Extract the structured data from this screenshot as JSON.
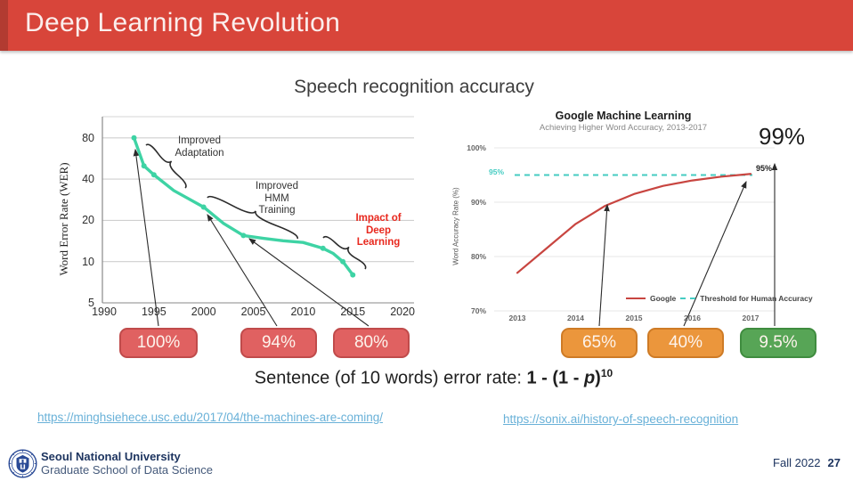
{
  "header": {
    "title": "Deep Learning Revolution",
    "bg": "#d8453a",
    "accent": "#b23b31"
  },
  "subtitle": "Speech recognition accuracy",
  "badges": [
    {
      "label": "100%",
      "fill": "#e06161",
      "border": "#c04b4b"
    },
    {
      "label": "94%",
      "fill": "#e06161",
      "border": "#c04b4b"
    },
    {
      "label": "80%",
      "fill": "#e06161",
      "border": "#c04b4b"
    },
    {
      "label": "65%",
      "fill": "#eb963c",
      "border": "#ce7b26"
    },
    {
      "label": "40%",
      "fill": "#eb963c",
      "border": "#ce7b26"
    },
    {
      "label": "9.5%",
      "fill": "#57a556",
      "border": "#3f8c3f"
    }
  ],
  "formula": {
    "prefix": "Sentence (of 10 words) error rate: ",
    "bold_open": "1 - (1 - ",
    "var": "p",
    "bold_close": ")",
    "exponent": "10"
  },
  "links": [
    {
      "text": "https://minghsiehece.usc.edu/2017/04/the-machines-are-coming/"
    },
    {
      "text": "https://sonix.ai/history-of-speech-recognition"
    }
  ],
  "footer": {
    "university": "Seoul National University",
    "school": "Graduate School of Data Science",
    "term": "Fall 2022",
    "page": "27"
  },
  "chart_data": [
    {
      "type": "line",
      "title": "",
      "ylabel": "Word Error Rate (WER)",
      "yscale": "log",
      "yticks": [
        80,
        40,
        20,
        10,
        5
      ],
      "xticks": [
        1990,
        1995,
        2000,
        2005,
        2010,
        2015,
        2020
      ],
      "xlim": [
        1990,
        2020
      ],
      "line_color": "#3ed3a4",
      "series": [
        {
          "name": "Word Error Rate",
          "points": [
            [
              1993,
              80
            ],
            [
              1994,
              50
            ],
            [
              1995,
              43
            ],
            [
              1997,
              33
            ],
            [
              2000,
              25
            ],
            [
              2002,
              19
            ],
            [
              2004,
              15.5
            ],
            [
              2006,
              14.8
            ],
            [
              2008,
              14.2
            ],
            [
              2010,
              13.8
            ],
            [
              2012,
              12.5
            ],
            [
              2013,
              11.5
            ],
            [
              2014,
              10
            ],
            [
              2015,
              8
            ]
          ],
          "markers": [
            [
              1993,
              80
            ],
            [
              1994,
              50
            ],
            [
              1995,
              43
            ],
            [
              2000,
              25
            ],
            [
              2004,
              15.5
            ],
            [
              2012,
              12.5
            ],
            [
              2014,
              10
            ],
            [
              2015,
              8
            ]
          ]
        }
      ],
      "annotations": [
        {
          "text": "Improved\nAdaptation",
          "color": "#333333"
        },
        {
          "text": "Improved\nHMM\nTraining",
          "color": "#333333"
        },
        {
          "text": "Impact of\nDeep\nLearning",
          "color": "#e8281e"
        }
      ]
    },
    {
      "type": "line",
      "title": "Google Machine Learning",
      "subtitle": "Achieving Higher Word Accuracy, 2013-2017",
      "ylabel": "Word Accuracy Rate (%)",
      "ylim": [
        70,
        100
      ],
      "yticks": [
        "100%",
        "90%",
        "80%",
        "70%"
      ],
      "xticks": [
        2013,
        2014,
        2015,
        2016,
        2017
      ],
      "series": [
        {
          "name": "Google",
          "color": "#c84540",
          "points": [
            [
              2013,
              77
            ],
            [
              2013.5,
              81.5
            ],
            [
              2014,
              86
            ],
            [
              2014.5,
              89.3
            ],
            [
              2015,
              91.5
            ],
            [
              2015.5,
              93
            ],
            [
              2016,
              94
            ],
            [
              2016.5,
              94.7
            ],
            [
              2017,
              95.2
            ]
          ]
        },
        {
          "name": "Threshold for Human Accuracy",
          "color": "#45ccc2",
          "style": "dashed",
          "value": 95
        }
      ],
      "threshold_label": "95%",
      "endpoint_label": "95%",
      "callout": "99%",
      "legend_position": "bottom"
    }
  ]
}
